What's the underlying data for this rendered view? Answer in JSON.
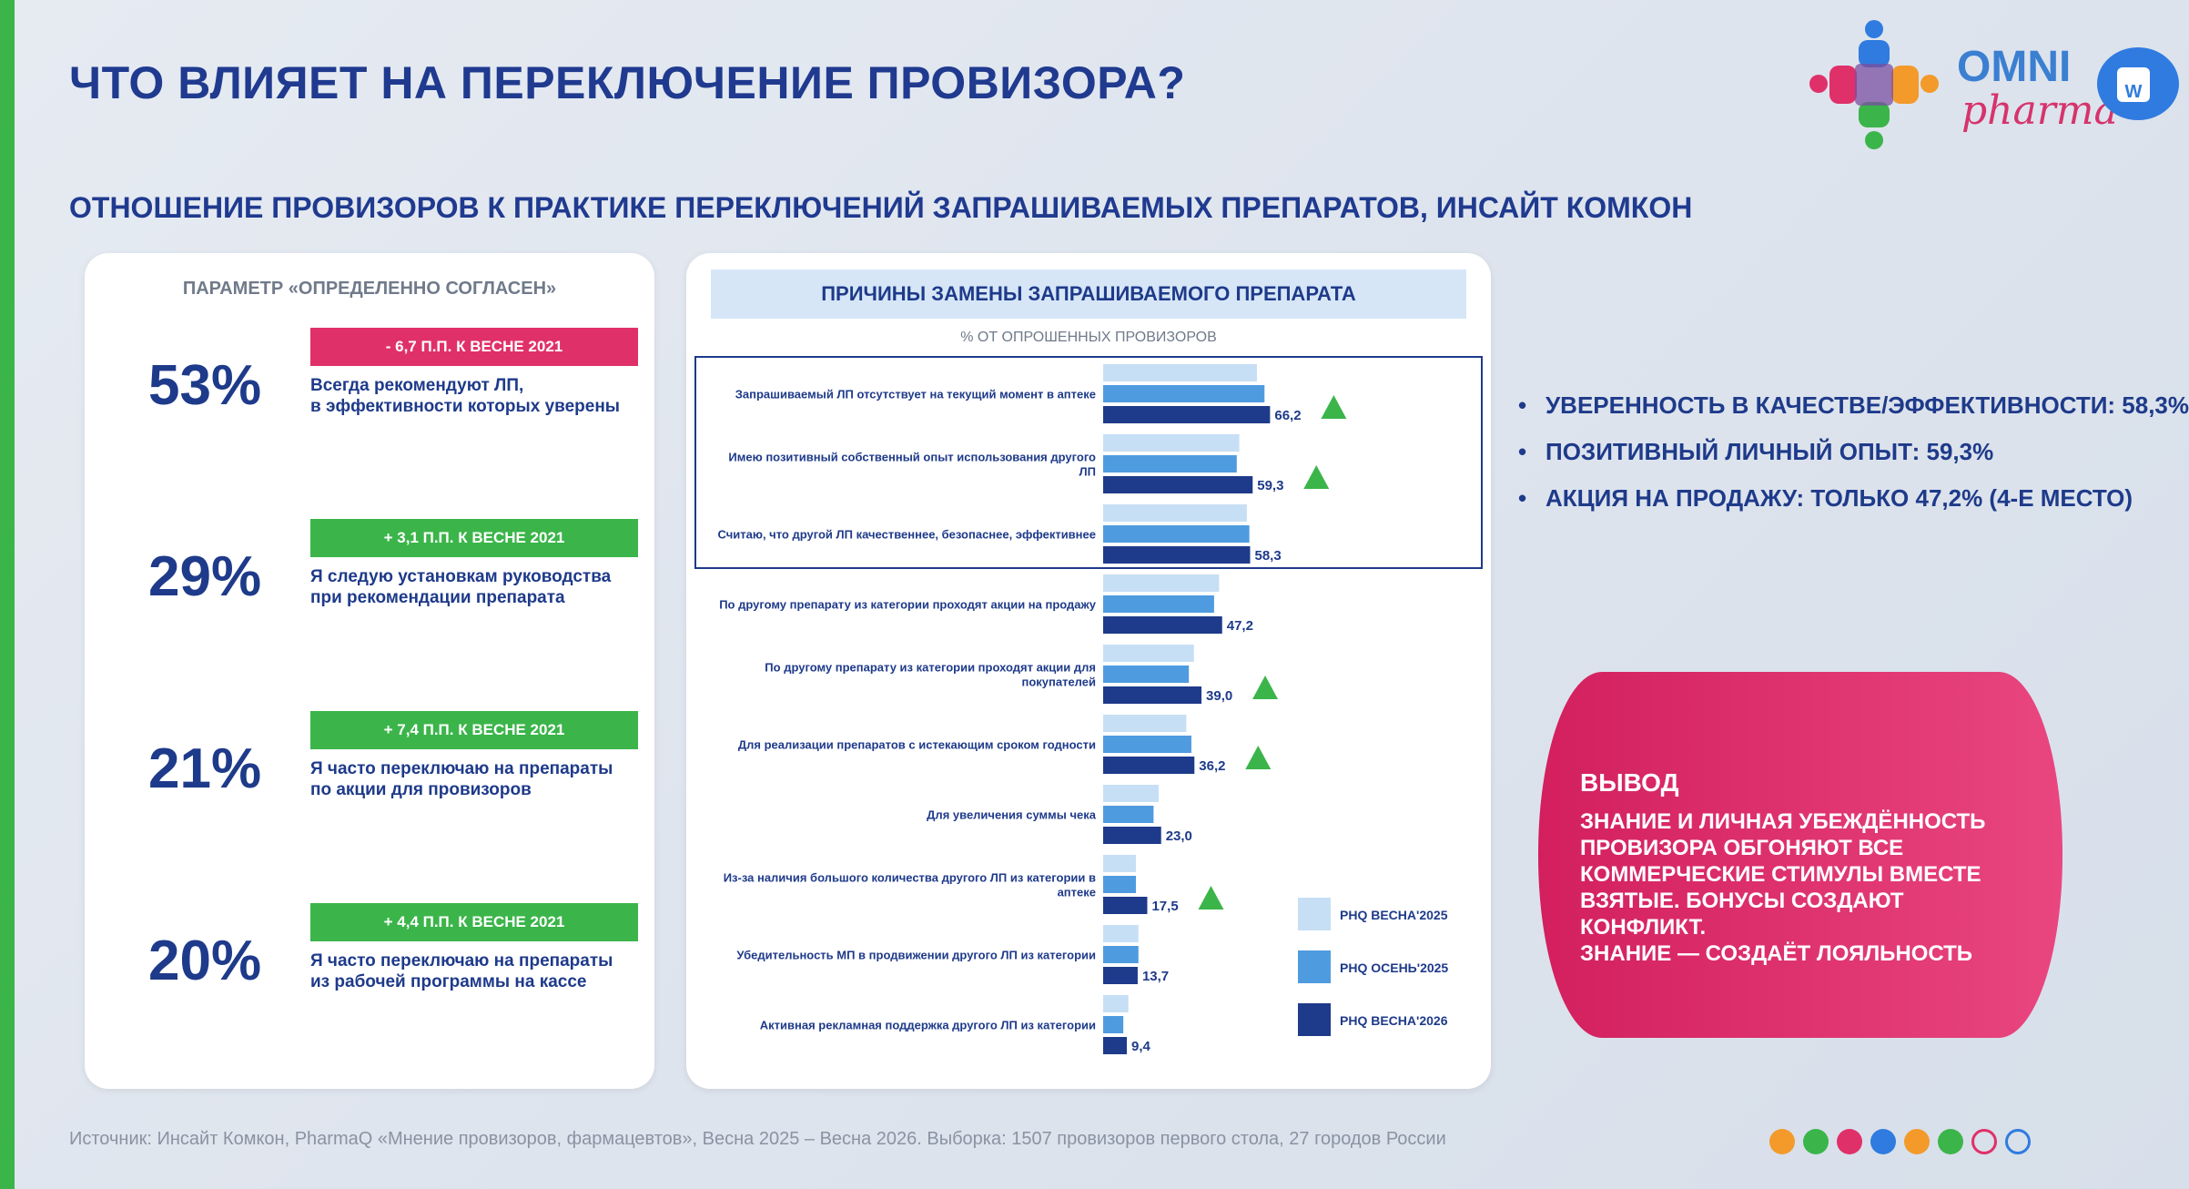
{
  "header": {
    "title": "ЧТО ВЛИЯЕТ НА ПЕРЕКЛЮЧЕНИЕ ПРОВИЗОРА?",
    "subtitle": "ОТНОШЕНИЕ ПРОВИЗОРОВ К ПРАКТИКЕ ПЕРЕКЛЮЧЕНИЙ ЗАПРАШИВАЕМЫХ ПРЕПАРАТОВ, ИНСАЙТ КОМКОН",
    "logo_omni": "OMNI",
    "logo_pharma": "pharma",
    "badge_letter": "W"
  },
  "left_card": {
    "header": "ПАРАМЕТР «ОПРЕДЕЛЕННО СОГЛАСЕН»",
    "stats": [
      {
        "pct": "53%",
        "badge": "- 6,7 П.П. К ВЕСНЕ 2021",
        "line1": "Всегда рекомендуют ЛП,",
        "line2": "в эффективности которых уверены"
      },
      {
        "pct": "29%",
        "badge": "+ 3,1 П.П. К ВЕСНЕ 2021",
        "line1": "Я следую установкам руководства",
        "line2": "при рекомендации препарата"
      },
      {
        "pct": "21%",
        "badge": "+ 7,4 П.П. К ВЕСНЕ 2021",
        "line1": "Я часто переключаю на препараты",
        "line2": "по акции для провизоров"
      },
      {
        "pct": "20%",
        "badge": "+ 4,4 П.П. К ВЕСНЕ 2021",
        "line1": "Я часто переключаю на препараты",
        "line2": "из рабочей программы на кассе"
      }
    ]
  },
  "chart_card": {
    "title": "ПРИЧИНЫ ЗАМЕНЫ ЗАПРАШИВАЕМОГО ПРЕПАРАТА",
    "unit": "% ОТ ОПРОШЕННЫХ ПРОВИЗОРОВ"
  },
  "chart_data": {
    "type": "bar",
    "orientation": "horizontal",
    "title": "ПРИЧИНЫ ЗАМЕНЫ ЗАПРАШИВАЕМОГО ПРЕПАРАТА",
    "ylabel": "% ОТ ОПРОШЕННЫХ ПРОВИЗОРОВ",
    "categories": [
      [
        "Запрашиваемый ЛП отсутствует на текущий момент в аптеке"
      ],
      [
        "Имею позитивный собственный опыт использования другого",
        "ЛП"
      ],
      [
        "Считаю, что другой ЛП качественнее, безопаснее, эффективнее"
      ],
      [
        "По другому препарату из категории проходят акции на продажу"
      ],
      [
        "По другому препарату из категории проходят акции для",
        "покупателей"
      ],
      [
        "Для реализации препаратов с истекающим сроком годности"
      ],
      [
        "Для увеличения суммы чека"
      ],
      [
        "Из-за наличия большого количества другого ЛП из категории в",
        "аптеке"
      ],
      [
        "Убедительность МП в продвижении другого ЛП из категории"
      ],
      [
        "Активная рекламная поддержка другого ЛП из категории"
      ]
    ],
    "series": [
      {
        "name": "PHQ ВЕСНА'2025",
        "color": "#c6dff5",
        "values": [
          61,
          54,
          57,
          46,
          36,
          33,
          22,
          13,
          14,
          10
        ]
      },
      {
        "name": "PHQ ОСЕНЬ'2025",
        "color": "#4f9be0",
        "values": [
          64,
          53,
          58,
          44,
          34,
          35,
          20,
          13,
          14,
          8
        ]
      },
      {
        "name": "PHQ ВЕСНА'2026",
        "color": "#1e3a8a",
        "values": [
          66.2,
          59.3,
          58.3,
          47.2,
          39.0,
          36.2,
          23.0,
          17.5,
          13.7,
          9.4
        ]
      }
    ],
    "value_labels": [
      "66,2",
      "59,3",
      "58,3",
      "47,2",
      "39,0",
      "36,2",
      "23,0",
      "17,5",
      "13,7",
      "9,4"
    ],
    "up_markers": [
      true,
      true,
      false,
      false,
      true,
      true,
      false,
      true,
      false,
      false
    ],
    "highlight_box": "top-3",
    "legend_position": "bottom-right",
    "xlim": [
      0,
      100
    ],
    "grid": false
  },
  "bullets": [
    "УВЕРЕННОСТЬ В КАЧЕСТВЕ/ЭФФЕКТИВНОСТИ: 58,3%",
    "ПОЗИТИВНЫЙ ЛИЧНЫЙ ОПЫТ: 59,3%",
    "АКЦИЯ НА ПРОДАЖУ: ТОЛЬКО 47,2% (4-Е МЕСТО)"
  ],
  "conclusion": {
    "title": "ВЫВОД",
    "lines": [
      "ЗНАНИЕ И ЛИЧНАЯ УБЕЖДЁННОСТЬ",
      "ПРОВИЗОРА ОБГОНЯЮТ ВСЕ",
      "КОММЕРЧЕСКИЕ СТИМУЛЫ ВМЕСТЕ",
      "ВЗЯТЫЕ. БОНУСЫ СОЗДАЮТ КОНФЛИКТ.",
      "ЗНАНИЕ — СОЗДАЁТ ЛОЯЛЬНОСТЬ"
    ]
  },
  "footer": {
    "source": "Источник: Инсайт Комкон, PharmaQ «Мнение провизоров, фармацевтов», Весна 2025 – Весна 2026. Выборка: 1507 провизоров первого стола, 27 городов России",
    "dot_colors": [
      "#f39a2b",
      "#3bb54a",
      "#e0306a",
      "#2f7be0",
      "#f39a2b",
      "#3bb54a",
      "#e0306a",
      "#2f7be0"
    ]
  },
  "colors": {
    "accent_blue": "#1e3a8a",
    "accent_green": "#3bb54a",
    "accent_pink": "#e0306a",
    "marker_green": "#3bb54a"
  }
}
